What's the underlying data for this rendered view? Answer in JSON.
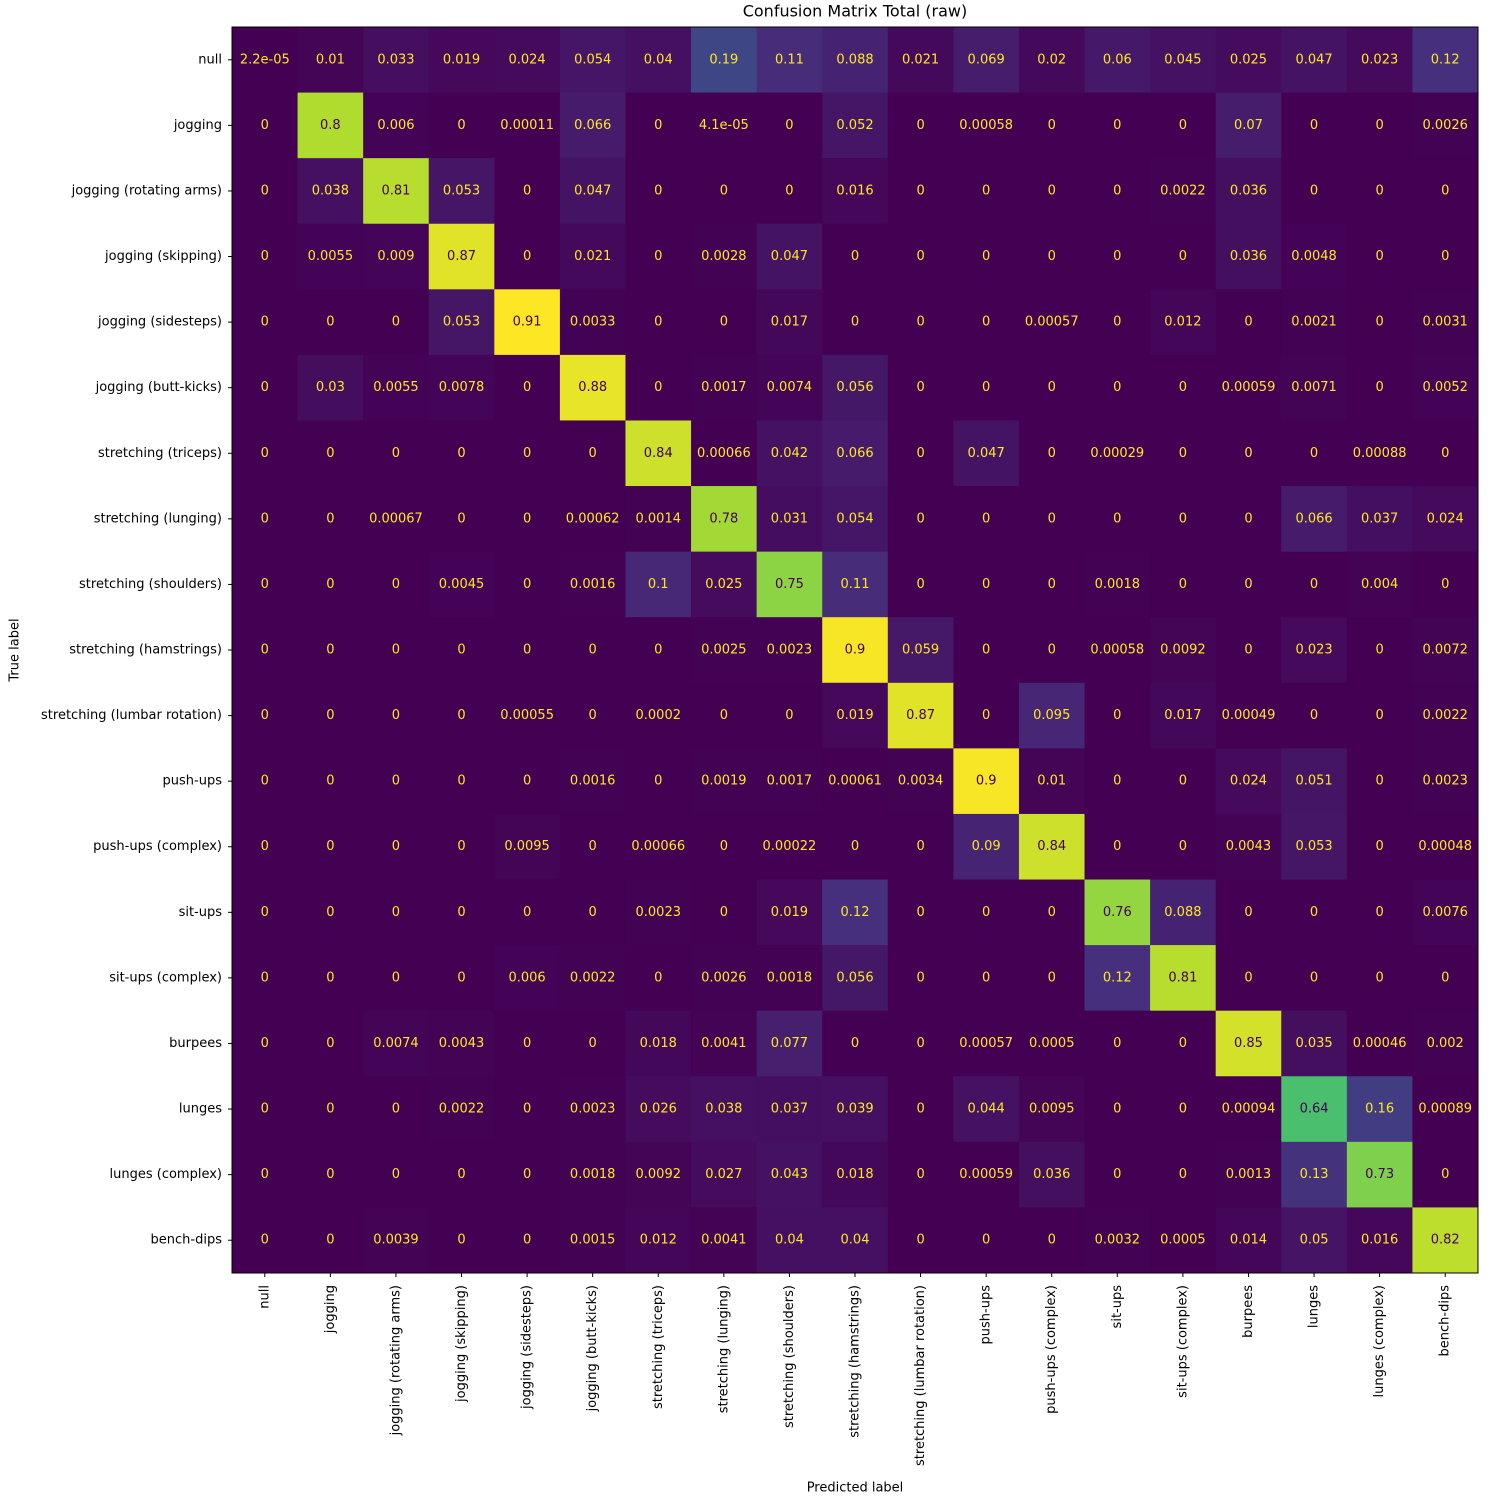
{
  "chart_data": {
    "type": "heatmap",
    "title": "Confusion Matrix Total (raw)",
    "xlabel": "Predicted label",
    "ylabel": "True label",
    "categories": [
      "null",
      "jogging",
      "jogging (rotating arms)",
      "jogging (skipping)",
      "jogging (sidesteps)",
      "jogging (butt-kicks)",
      "stretching (triceps)",
      "stretching (lunging)",
      "stretching (shoulders)",
      "stretching (hamstrings)",
      "stretching (lumbar rotation)",
      "push-ups",
      "push-ups (complex)",
      "sit-ups",
      "sit-ups (complex)",
      "burpees",
      "lunges",
      "lunges (complex)",
      "bench-dips"
    ],
    "values": [
      [
        2.2e-05,
        0.01,
        0.033,
        0.019,
        0.024,
        0.054,
        0.04,
        0.19,
        0.11,
        0.088,
        0.021,
        0.069,
        0.02,
        0.06,
        0.045,
        0.025,
        0.047,
        0.023,
        0.12
      ],
      [
        0,
        0.8,
        0.006,
        0,
        0.00011,
        0.066,
        0,
        4.1e-05,
        0,
        0.052,
        0,
        0.00058,
        0,
        0,
        0,
        0.07,
        0,
        0,
        0.0026
      ],
      [
        0,
        0.038,
        0.81,
        0.053,
        0,
        0.047,
        0,
        0,
        0,
        0.016,
        0,
        0,
        0,
        0,
        0.0022,
        0.036,
        0,
        0,
        0
      ],
      [
        0,
        0.0055,
        0.009,
        0.87,
        0,
        0.021,
        0,
        0.0028,
        0.047,
        0,
        0,
        0,
        0,
        0,
        0,
        0.036,
        0.0048,
        0,
        0
      ],
      [
        0,
        0,
        0,
        0.053,
        0.91,
        0.0033,
        0,
        0,
        0.017,
        0,
        0,
        0,
        0.00057,
        0,
        0.012,
        0,
        0.0021,
        0,
        0.0031
      ],
      [
        0,
        0.03,
        0.0055,
        0.0078,
        0,
        0.88,
        0,
        0.0017,
        0.0074,
        0.056,
        0,
        0,
        0,
        0,
        0,
        0.00059,
        0.0071,
        0,
        0.0052
      ],
      [
        0,
        0,
        0,
        0,
        0,
        0,
        0.84,
        0.00066,
        0.042,
        0.066,
        0,
        0.047,
        0,
        0.00029,
        0,
        0,
        0,
        0.00088,
        0
      ],
      [
        0,
        0,
        0.00067,
        0,
        0,
        0.00062,
        0.0014,
        0.78,
        0.031,
        0.054,
        0,
        0,
        0,
        0,
        0,
        0,
        0.066,
        0.037,
        0.024
      ],
      [
        0,
        0,
        0,
        0.0045,
        0,
        0.0016,
        0.1,
        0.025,
        0.75,
        0.11,
        0,
        0,
        0,
        0.0018,
        0,
        0,
        0,
        0.004,
        0
      ],
      [
        0,
        0,
        0,
        0,
        0,
        0,
        0,
        0.0025,
        0.0023,
        0.9,
        0.059,
        0,
        0,
        0.00058,
        0.0092,
        0,
        0.023,
        0,
        0.0072
      ],
      [
        0,
        0,
        0,
        0,
        0.00055,
        0,
        0.0002,
        0,
        0,
        0.019,
        0.87,
        0,
        0.095,
        0,
        0.017,
        0.00049,
        0,
        0,
        0.0022
      ],
      [
        0,
        0,
        0,
        0,
        0,
        0.0016,
        0,
        0.0019,
        0.0017,
        0.00061,
        0.0034,
        0.9,
        0.01,
        0,
        0,
        0.024,
        0.051,
        0,
        0.0023
      ],
      [
        0,
        0,
        0,
        0,
        0.0095,
        0,
        0.00066,
        0,
        0.00022,
        0,
        0,
        0.09,
        0.84,
        0,
        0,
        0.0043,
        0.053,
        0,
        0.00048
      ],
      [
        0,
        0,
        0,
        0,
        0,
        0,
        0.0023,
        0,
        0.019,
        0.12,
        0,
        0,
        0,
        0.76,
        0.088,
        0,
        0,
        0,
        0.0076
      ],
      [
        0,
        0,
        0,
        0,
        0.006,
        0.0022,
        0,
        0.0026,
        0.0018,
        0.056,
        0,
        0,
        0,
        0.12,
        0.81,
        0,
        0,
        0,
        0
      ],
      [
        0,
        0,
        0.0074,
        0.0043,
        0,
        0,
        0.018,
        0.0041,
        0.077,
        0,
        0,
        0.00057,
        0.0005,
        0,
        0,
        0.85,
        0.035,
        0.00046,
        0.002
      ],
      [
        0,
        0,
        0,
        0.0022,
        0,
        0.0023,
        0.026,
        0.038,
        0.037,
        0.039,
        0,
        0.044,
        0.0095,
        0,
        0,
        0.00094,
        0.64,
        0.16,
        0.00089
      ],
      [
        0,
        0,
        0,
        0,
        0,
        0.0018,
        0.0092,
        0.027,
        0.043,
        0.018,
        0,
        0.00059,
        0.036,
        0,
        0,
        0.0013,
        0.13,
        0.73,
        0
      ],
      [
        0,
        0,
        0.0039,
        0,
        0,
        0.0015,
        0.012,
        0.0041,
        0.04,
        0.04,
        0,
        0,
        0,
        0.0032,
        0.0005,
        0.014,
        0.05,
        0.016,
        0.82
      ]
    ],
    "value_labels": [
      [
        "2.2e-05",
        null,
        null,
        null,
        null,
        null,
        null,
        null,
        null,
        null,
        null,
        null,
        null,
        null,
        null,
        null,
        null,
        null,
        null
      ],
      [
        null,
        null,
        null,
        null,
        null,
        null,
        null,
        "4.1e-05",
        null,
        null,
        null,
        null,
        null,
        null,
        null,
        null,
        null,
        null,
        null
      ]
    ],
    "cmap": "viridis",
    "clim": [
      0,
      0.91
    ]
  }
}
